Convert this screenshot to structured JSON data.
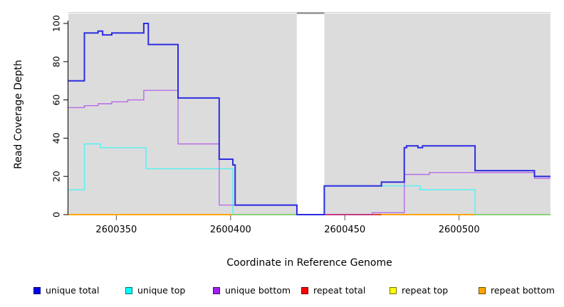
{
  "figure": {
    "background": "#ffffff",
    "panel_background": "#dcdcdc"
  },
  "y_axis": {
    "label": "Read Coverage Depth",
    "ticks": [
      "0",
      "20",
      "40",
      "60",
      "80",
      "100"
    ],
    "tick_values": [
      0,
      20,
      40,
      60,
      80,
      100
    ]
  },
  "x_axis": {
    "label": "Coordinate in Reference Genome",
    "ticks": [
      "2600350",
      "2600400",
      "2600450",
      "2600500"
    ],
    "tick_values": [
      2600350,
      2600400,
      2600450,
      2600500
    ]
  },
  "chart_data": {
    "type": "line",
    "step": true,
    "xlabel": "Coordinate in Reference Genome",
    "ylabel": "Read Coverage Depth",
    "xlim": [
      2600329,
      2600540
    ],
    "ylim": [
      0,
      105
    ],
    "grid": false,
    "legend_position": "bottom",
    "gap_region": {
      "x_start": 2600429,
      "x_end": 2600441,
      "fill": "#ffffff",
      "top_border": "#858585"
    },
    "series": [
      {
        "name": "repeat top",
        "color": "#ffff00",
        "width": 1.4,
        "opacity": 1,
        "points": []
      },
      {
        "name": "repeat bottom",
        "color": "#ffa500",
        "width": 2,
        "opacity": 1,
        "points": [
          [
            2600329,
            0
          ],
          [
            2600540,
            0
          ]
        ]
      },
      {
        "name": "repeat total",
        "color": "#d22b3c",
        "width": 1.4,
        "opacity": 1,
        "points": [
          [
            2600441,
            0
          ],
          [
            2600466,
            0
          ]
        ]
      },
      {
        "name": "unique bottom",
        "color": "#a020f0",
        "width": 1.4,
        "opacity": 0.6,
        "points": [
          [
            2600329,
            56
          ],
          [
            2600336,
            57
          ],
          [
            2600342,
            58
          ],
          [
            2600348,
            59
          ],
          [
            2600355,
            60
          ],
          [
            2600362,
            65
          ],
          [
            2600377,
            37
          ],
          [
            2600395,
            5
          ],
          [
            2600429,
            0
          ],
          [
            2600462,
            1
          ],
          [
            2600476,
            21
          ],
          [
            2600487,
            22
          ],
          [
            2600533,
            19
          ],
          [
            2600540,
            19
          ]
        ]
      },
      {
        "name": "unique top",
        "color": "#00ffff",
        "width": 1.4,
        "opacity": 0.62,
        "points": [
          [
            2600329,
            13
          ],
          [
            2600336,
            37
          ],
          [
            2600343,
            35
          ],
          [
            2600363,
            24
          ],
          [
            2600401,
            0
          ],
          [
            2600441,
            15
          ],
          [
            2600483,
            13
          ],
          [
            2600507,
            0
          ],
          [
            2600540,
            0
          ]
        ]
      },
      {
        "name": "unique total",
        "color": "#2323e2",
        "width": 2,
        "opacity": 0.95,
        "points": [
          [
            2600329,
            70
          ],
          [
            2600336,
            95
          ],
          [
            2600342,
            96
          ],
          [
            2600344,
            94
          ],
          [
            2600348,
            95
          ],
          [
            2600362,
            100
          ],
          [
            2600364,
            89
          ],
          [
            2600377,
            61
          ],
          [
            2600395,
            29
          ],
          [
            2600401,
            26
          ],
          [
            2600402,
            5
          ],
          [
            2600429,
            0
          ],
          [
            2600441,
            15
          ],
          [
            2600466,
            17
          ],
          [
            2600476,
            35
          ],
          [
            2600477,
            36
          ],
          [
            2600482,
            35
          ],
          [
            2600484,
            36
          ],
          [
            2600507,
            23
          ],
          [
            2600533,
            20
          ],
          [
            2600540,
            20
          ]
        ]
      }
    ]
  },
  "legend": {
    "entries": [
      {
        "label": "unique total",
        "color": "#0000ee"
      },
      {
        "label": "unique top",
        "color": "#00ffff"
      },
      {
        "label": "unique bottom",
        "color": "#a020f0"
      },
      {
        "label": "repeat total",
        "color": "#ff0000"
      },
      {
        "label": "repeat top",
        "color": "#ffff00"
      },
      {
        "label": "repeat bottom",
        "color": "#ffa500"
      }
    ]
  }
}
